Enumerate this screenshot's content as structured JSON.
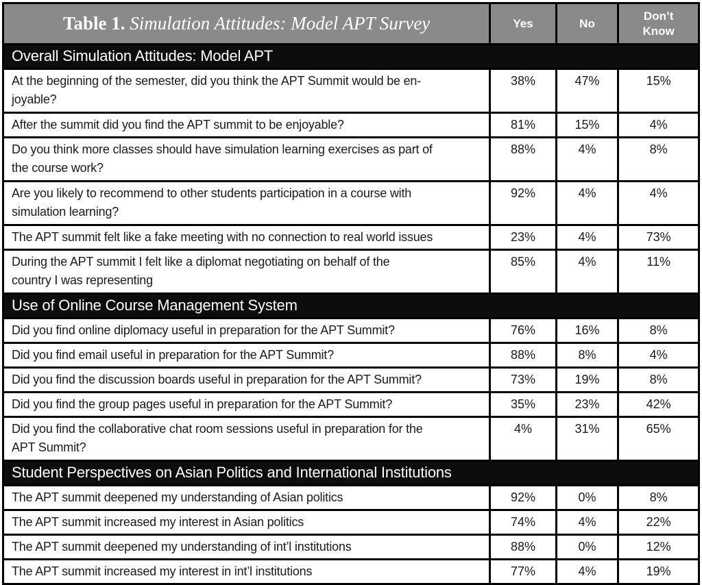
{
  "table": {
    "title": {
      "prefix": "Table 1.",
      "rest": " Simulation Attitudes: Model APT Survey"
    },
    "columns": {
      "yes": "Yes",
      "no": "No",
      "dont_know": "Don’t\nKnow"
    },
    "colors": {
      "title_bar_bg": "#8a8a8a",
      "section_bar_bg": "#0d0d0d",
      "border": "#000000",
      "header_text": "#ffffff",
      "body_text": "#1a1a1a",
      "row_bg": "#ffffff"
    },
    "sections": [
      {
        "heading": "Overall Simulation Attitudes: Model APT",
        "rows": [
          {
            "q": "At the beginning of the semester, did you think the APT Summit would be en-\njoyable?",
            "yes": "38%",
            "no": "47%",
            "dk": "15%"
          },
          {
            "q": "After the summit did you find the APT summit to be enjoyable?",
            "yes": "81%",
            "no": "15%",
            "dk": "4%"
          },
          {
            "q": "Do you think more classes should have simulation learning exercises as part of\nthe course work?",
            "yes": "88%",
            "no": "4%",
            "dk": "8%"
          },
          {
            "q": "Are you likely to recommend to other students participation in a course with\nsimulation learning?",
            "yes": "92%",
            "no": "4%",
            "dk": "4%"
          },
          {
            "q": "The APT summit felt like a fake meeting with no connection to real world issues",
            "yes": "23%",
            "no": "4%",
            "dk": "73%"
          },
          {
            "q": "During the APT summit I felt like a diplomat negotiating on behalf of the\ncountry I was representing",
            "yes": "85%",
            "no": "4%",
            "dk": "11%"
          }
        ]
      },
      {
        "heading": "Use of Online Course Management System",
        "rows": [
          {
            "q": "Did you find online diplomacy useful in preparation for the APT Summit?",
            "yes": "76%",
            "no": "16%",
            "dk": "8%"
          },
          {
            "q": "Did you find email useful in preparation for the APT Summit?",
            "yes": "88%",
            "no": "8%",
            "dk": "4%"
          },
          {
            "q": "Did you find the discussion boards useful in preparation for the APT Summit?",
            "yes": "73%",
            "no": "19%",
            "dk": "8%"
          },
          {
            "q": "Did you find the group pages useful in preparation for the APT Summit?",
            "yes": "35%",
            "no": "23%",
            "dk": "42%"
          },
          {
            "q": "Did you find the collaborative chat room sessions useful in preparation for the\nAPT Summit?",
            "yes": "4%",
            "no": "31%",
            "dk": "65%"
          }
        ]
      },
      {
        "heading": "Student Perspectives on Asian Politics and International Institutions",
        "rows": [
          {
            "q": "The APT summit deepened my understanding of Asian politics",
            "yes": "92%",
            "no": "0%",
            "dk": "8%"
          },
          {
            "q": "The APT summit increased my interest in Asian politics",
            "yes": "74%",
            "no": "4%",
            "dk": "22%"
          },
          {
            "q": "The APT summit deepened my understanding of int’l institutions",
            "yes": "88%",
            "no": "0%",
            "dk": "12%"
          },
          {
            "q": "The APT summit increased my interest in int’l institutions",
            "yes": "77%",
            "no": "4%",
            "dk": "19%"
          }
        ]
      }
    ]
  }
}
